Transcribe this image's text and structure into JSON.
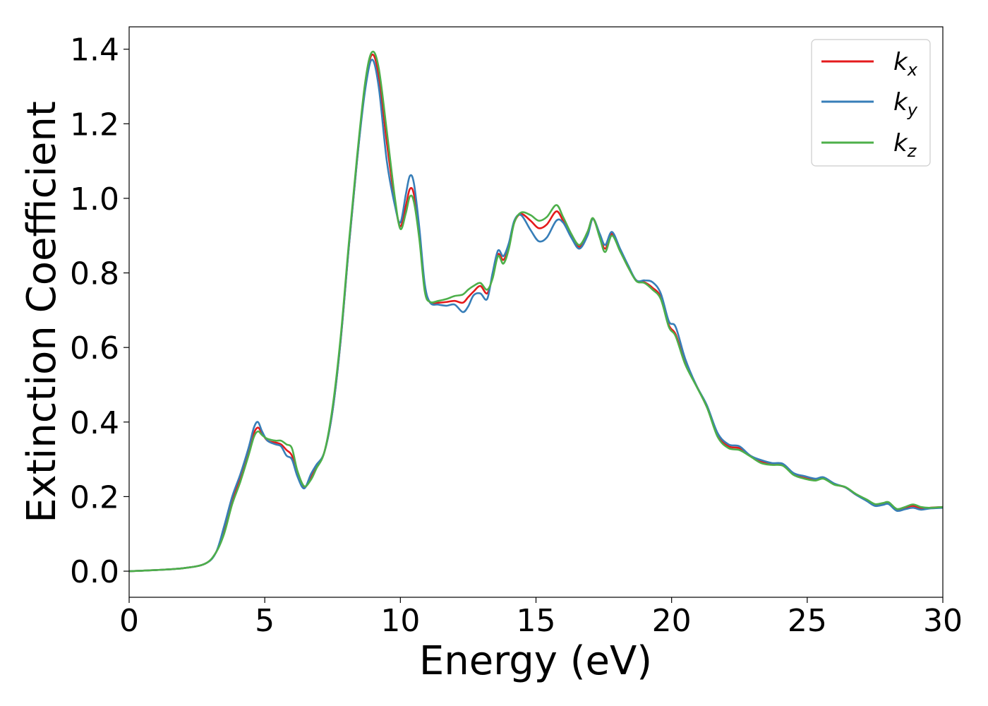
{
  "chart_data": {
    "type": "line",
    "title": "",
    "xlabel": "Energy (eV)",
    "ylabel": "Extinction Coefficient",
    "xlim": [
      0,
      30
    ],
    "ylim": [
      -0.07,
      1.46
    ],
    "xticks": [
      0,
      5,
      10,
      15,
      20,
      25,
      30
    ],
    "xtick_labels": [
      "0",
      "5",
      "10",
      "15",
      "20",
      "25",
      "30"
    ],
    "yticks": [
      0.0,
      0.2,
      0.4,
      0.6,
      0.8,
      1.0,
      1.2,
      1.4
    ],
    "ytick_labels": [
      "0.0",
      "0.2",
      "0.4",
      "0.6",
      "0.8",
      "1.0",
      "1.2",
      "1.4"
    ],
    "grid": false,
    "legend_position": "top-right",
    "x": [
      0,
      1,
      2,
      2.8,
      3.2,
      3.5,
      3.8,
      4.1,
      4.4,
      4.6,
      4.75,
      4.9,
      5.1,
      5.4,
      5.6,
      5.8,
      6.0,
      6.2,
      6.45,
      6.7,
      6.9,
      7.2,
      7.5,
      7.8,
      8.1,
      8.4,
      8.7,
      8.95,
      9.2,
      9.5,
      9.8,
      10.0,
      10.2,
      10.35,
      10.5,
      10.7,
      10.9,
      11.1,
      11.4,
      11.7,
      12.0,
      12.3,
      12.5,
      12.7,
      12.95,
      13.2,
      13.4,
      13.6,
      13.8,
      14.0,
      14.2,
      14.45,
      14.8,
      15.1,
      15.4,
      15.75,
      16.0,
      16.3,
      16.6,
      16.9,
      17.1,
      17.35,
      17.55,
      17.8,
      18.1,
      18.4,
      18.7,
      19.0,
      19.3,
      19.6,
      19.9,
      20.15,
      20.5,
      20.9,
      21.3,
      21.7,
      22.1,
      22.5,
      22.9,
      23.3,
      23.7,
      24.1,
      24.5,
      24.9,
      25.3,
      25.6,
      26.0,
      26.4,
      26.8,
      27.2,
      27.5,
      27.8,
      28.0,
      28.3,
      28.6,
      28.9,
      29.2,
      29.5,
      30.0
    ],
    "series": [
      {
        "name": "k_x",
        "color": "#e41a1c",
        "values": [
          0.0,
          0.003,
          0.008,
          0.02,
          0.05,
          0.11,
          0.19,
          0.25,
          0.32,
          0.37,
          0.385,
          0.37,
          0.35,
          0.345,
          0.34,
          0.325,
          0.31,
          0.26,
          0.225,
          0.25,
          0.28,
          0.32,
          0.43,
          0.62,
          0.87,
          1.1,
          1.3,
          1.385,
          1.33,
          1.15,
          0.99,
          0.925,
          0.98,
          1.025,
          1.01,
          0.9,
          0.76,
          0.72,
          0.72,
          0.722,
          0.725,
          0.72,
          0.735,
          0.75,
          0.765,
          0.745,
          0.79,
          0.85,
          0.835,
          0.87,
          0.935,
          0.958,
          0.94,
          0.92,
          0.93,
          0.965,
          0.94,
          0.9,
          0.87,
          0.91,
          0.945,
          0.9,
          0.865,
          0.905,
          0.86,
          0.815,
          0.78,
          0.775,
          0.76,
          0.735,
          0.66,
          0.635,
          0.56,
          0.5,
          0.44,
          0.365,
          0.335,
          0.33,
          0.31,
          0.295,
          0.288,
          0.285,
          0.26,
          0.25,
          0.245,
          0.25,
          0.233,
          0.225,
          0.205,
          0.19,
          0.178,
          0.18,
          0.182,
          0.165,
          0.17,
          0.175,
          0.168,
          0.17,
          0.172
        ]
      },
      {
        "name": "k_y",
        "color": "#377eb8",
        "values": [
          0.0,
          0.003,
          0.008,
          0.02,
          0.05,
          0.12,
          0.2,
          0.26,
          0.33,
          0.385,
          0.4,
          0.375,
          0.35,
          0.34,
          0.335,
          0.31,
          0.3,
          0.255,
          0.222,
          0.26,
          0.285,
          0.32,
          0.43,
          0.62,
          0.87,
          1.1,
          1.29,
          1.372,
          1.3,
          1.1,
          0.98,
          0.935,
          1.01,
          1.06,
          1.04,
          0.92,
          0.77,
          0.72,
          0.715,
          0.712,
          0.715,
          0.695,
          0.71,
          0.74,
          0.745,
          0.73,
          0.8,
          0.86,
          0.845,
          0.88,
          0.94,
          0.955,
          0.915,
          0.885,
          0.895,
          0.94,
          0.935,
          0.895,
          0.865,
          0.9,
          0.945,
          0.905,
          0.875,
          0.91,
          0.865,
          0.82,
          0.78,
          0.78,
          0.775,
          0.745,
          0.67,
          0.655,
          0.57,
          0.5,
          0.445,
          0.37,
          0.34,
          0.335,
          0.31,
          0.298,
          0.29,
          0.288,
          0.263,
          0.255,
          0.248,
          0.252,
          0.235,
          0.225,
          0.205,
          0.188,
          0.175,
          0.178,
          0.18,
          0.162,
          0.166,
          0.17,
          0.165,
          0.168,
          0.17
        ]
      },
      {
        "name": "k_z",
        "color": "#4daf4a",
        "values": [
          0.0,
          0.003,
          0.008,
          0.02,
          0.05,
          0.1,
          0.18,
          0.24,
          0.31,
          0.36,
          0.375,
          0.365,
          0.355,
          0.35,
          0.35,
          0.34,
          0.33,
          0.27,
          0.228,
          0.245,
          0.275,
          0.32,
          0.44,
          0.63,
          0.88,
          1.11,
          1.31,
          1.392,
          1.35,
          1.18,
          1.0,
          0.918,
          0.96,
          1.005,
          0.99,
          0.89,
          0.75,
          0.722,
          0.725,
          0.73,
          0.738,
          0.742,
          0.755,
          0.765,
          0.773,
          0.755,
          0.785,
          0.845,
          0.825,
          0.865,
          0.935,
          0.962,
          0.955,
          0.94,
          0.95,
          0.982,
          0.95,
          0.905,
          0.875,
          0.91,
          0.947,
          0.895,
          0.856,
          0.9,
          0.858,
          0.815,
          0.778,
          0.773,
          0.755,
          0.73,
          0.655,
          0.63,
          0.555,
          0.498,
          0.44,
          0.36,
          0.33,
          0.325,
          0.308,
          0.29,
          0.285,
          0.283,
          0.258,
          0.248,
          0.243,
          0.248,
          0.232,
          0.226,
          0.207,
          0.192,
          0.18,
          0.183,
          0.185,
          0.167,
          0.172,
          0.179,
          0.172,
          0.17,
          0.172
        ]
      }
    ]
  },
  "legend": {
    "items": [
      {
        "base": "k",
        "sub": "x"
      },
      {
        "base": "k",
        "sub": "y"
      },
      {
        "base": "k",
        "sub": "z"
      }
    ]
  }
}
